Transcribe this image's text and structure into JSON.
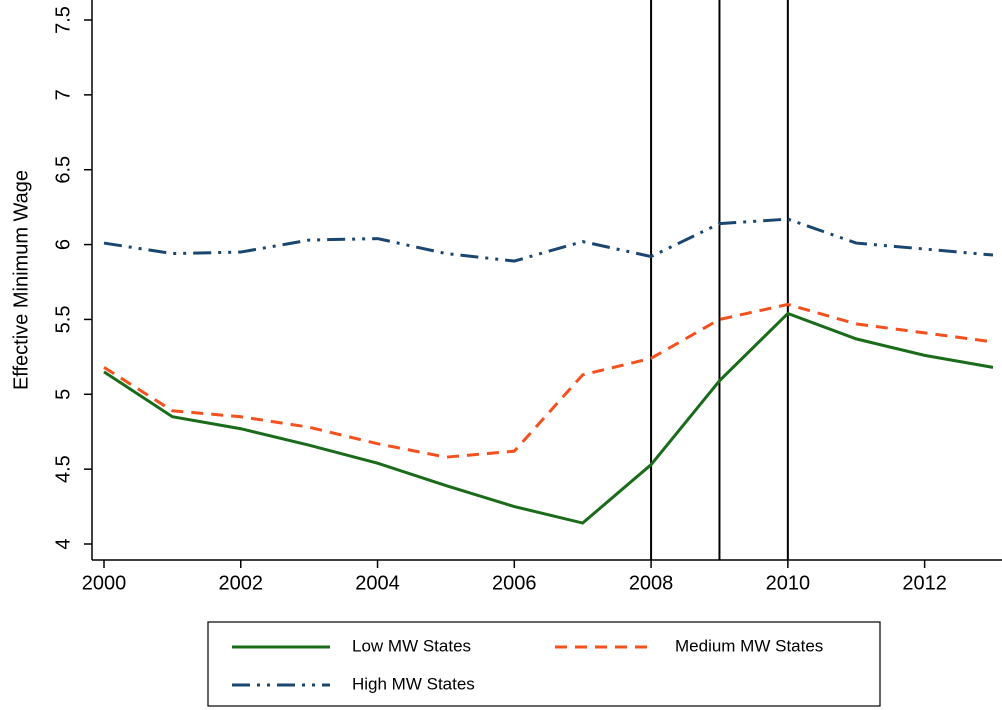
{
  "chart_data": {
    "type": "line",
    "y_label": "Effective Minimum Wage",
    "x": [
      2000,
      2001,
      2002,
      2003,
      2004,
      2005,
      2006,
      2007,
      2008,
      2009,
      2010,
      2011,
      2012,
      2013
    ],
    "series": [
      {
        "name": "Low MW States",
        "color": "#1a6b1a",
        "dash": "solid",
        "values": [
          5.15,
          4.85,
          4.77,
          4.66,
          4.54,
          4.39,
          4.25,
          4.14,
          4.53,
          5.09,
          5.54,
          5.37,
          5.26,
          5.18
        ]
      },
      {
        "name": "Medium MW States",
        "color": "#f4511e",
        "dash": "dashed",
        "values": [
          5.18,
          4.89,
          4.85,
          4.78,
          4.67,
          4.58,
          4.62,
          5.13,
          5.24,
          5.5,
          5.6,
          5.47,
          5.41,
          5.35
        ]
      },
      {
        "name": "High MW States",
        "color": "#1a476f",
        "dash": "dashdotdot",
        "values": [
          6.01,
          5.94,
          5.95,
          6.03,
          6.04,
          5.94,
          5.89,
          6.02,
          5.92,
          6.14,
          6.17,
          6.01,
          5.97,
          5.93
        ]
      }
    ],
    "xlim": [
      2000,
      2013
    ],
    "ylim": [
      4,
      7.5
    ],
    "xticks": [
      2000,
      2002,
      2004,
      2006,
      2008,
      2010,
      2012
    ],
    "yticks": [
      4,
      4.5,
      5,
      5.5,
      6,
      6.5,
      7,
      7.5
    ],
    "xlines": [
      2008,
      2009,
      2010
    ],
    "legend": "bottom"
  }
}
